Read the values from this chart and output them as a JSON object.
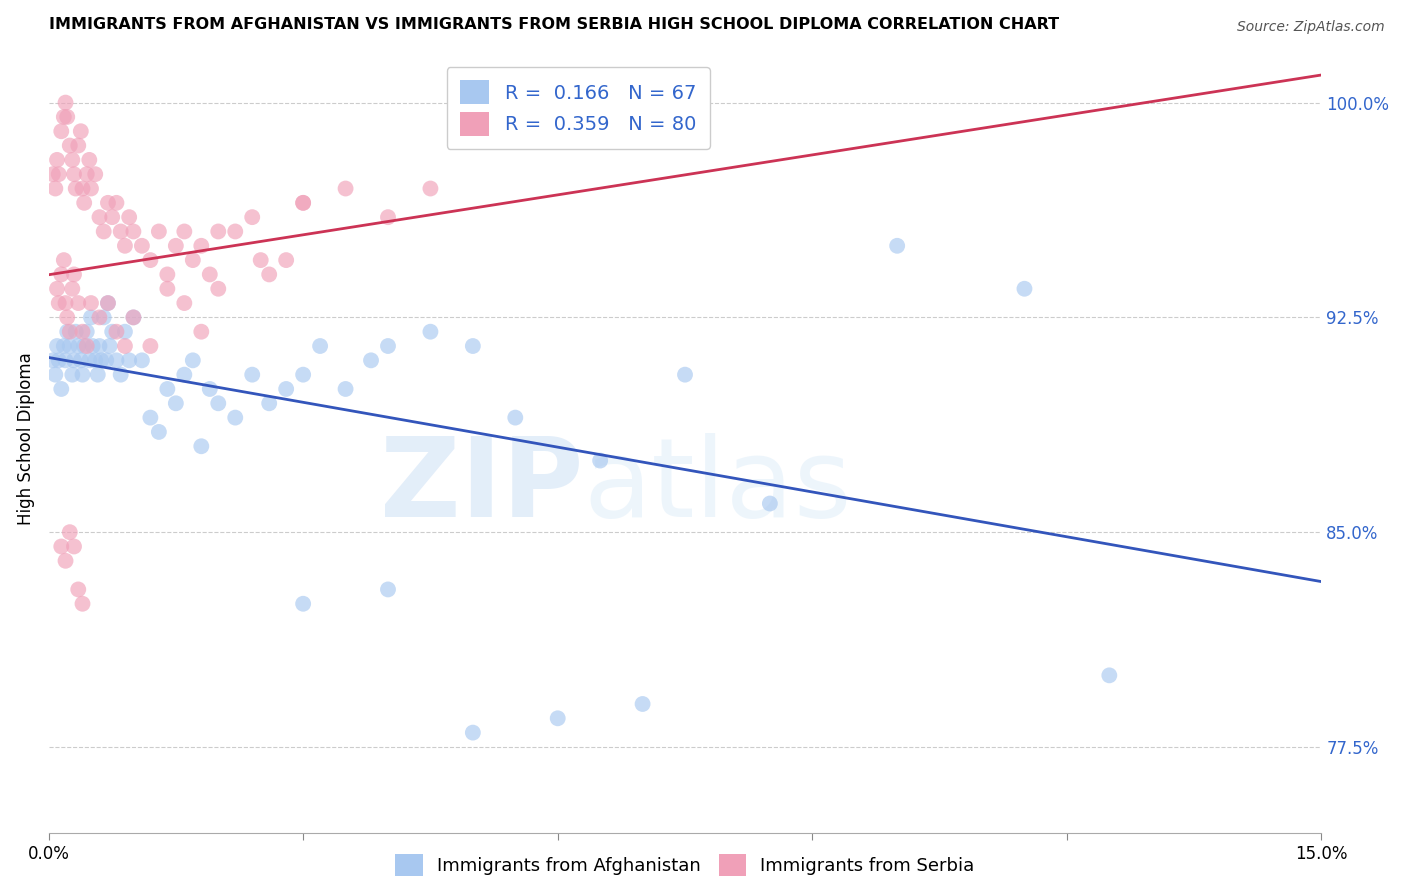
{
  "title": "IMMIGRANTS FROM AFGHANISTAN VS IMMIGRANTS FROM SERBIA HIGH SCHOOL DIPLOMA CORRELATION CHART",
  "source": "Source: ZipAtlas.com",
  "ylabel": "High School Diploma",
  "xlim": [
    0.0,
    15.0
  ],
  "ylim": [
    74.5,
    102.0
  ],
  "y_ticks_right": [
    77.5,
    85.0,
    92.5,
    100.0
  ],
  "y_tick_labels_right": [
    "77.5%",
    "85.0%",
    "92.5%",
    "100.0%"
  ],
  "label1": "Immigrants from Afghanistan",
  "label2": "Immigrants from Serbia",
  "color1": "#a8c8f0",
  "color2": "#f0a0b8",
  "line_color1": "#3355bb",
  "line_color2": "#cc3355",
  "watermark_zip": "ZIP",
  "watermark_atlas": "atlas",
  "afg_x": [
    0.05,
    0.08,
    0.1,
    0.12,
    0.15,
    0.18,
    0.2,
    0.22,
    0.25,
    0.28,
    0.3,
    0.32,
    0.35,
    0.38,
    0.4,
    0.42,
    0.45,
    0.48,
    0.5,
    0.52,
    0.55,
    0.58,
    0.6,
    0.62,
    0.65,
    0.68,
    0.7,
    0.72,
    0.75,
    0.8,
    0.85,
    0.9,
    0.95,
    1.0,
    1.1,
    1.2,
    1.3,
    1.4,
    1.5,
    1.6,
    1.7,
    1.8,
    1.9,
    2.0,
    2.2,
    2.4,
    2.6,
    2.8,
    3.0,
    3.2,
    3.5,
    3.8,
    4.0,
    4.5,
    5.0,
    5.5,
    6.5,
    7.5,
    8.5,
    10.0,
    11.5,
    12.5,
    3.0,
    4.0,
    5.0,
    6.0,
    7.0
  ],
  "afg_y": [
    91.0,
    90.5,
    91.5,
    91.0,
    90.0,
    91.5,
    91.0,
    92.0,
    91.5,
    90.5,
    91.0,
    92.0,
    91.5,
    91.0,
    90.5,
    91.5,
    92.0,
    91.0,
    92.5,
    91.5,
    91.0,
    90.5,
    91.5,
    91.0,
    92.5,
    91.0,
    93.0,
    91.5,
    92.0,
    91.0,
    90.5,
    92.0,
    91.0,
    92.5,
    91.0,
    89.0,
    88.5,
    90.0,
    89.5,
    90.5,
    91.0,
    88.0,
    90.0,
    89.5,
    89.0,
    90.5,
    89.5,
    90.0,
    90.5,
    91.5,
    90.0,
    91.0,
    91.5,
    92.0,
    91.5,
    89.0,
    87.5,
    90.5,
    86.0,
    95.0,
    93.5,
    80.0,
    82.5,
    83.0,
    78.0,
    78.5,
    79.0
  ],
  "serb_x": [
    0.05,
    0.08,
    0.1,
    0.12,
    0.15,
    0.18,
    0.2,
    0.22,
    0.25,
    0.28,
    0.3,
    0.32,
    0.35,
    0.38,
    0.4,
    0.42,
    0.45,
    0.48,
    0.5,
    0.55,
    0.6,
    0.65,
    0.7,
    0.75,
    0.8,
    0.85,
    0.9,
    0.95,
    1.0,
    1.1,
    1.2,
    1.3,
    1.4,
    1.5,
    1.6,
    1.7,
    1.8,
    1.9,
    2.0,
    2.2,
    2.4,
    2.6,
    2.8,
    3.0,
    3.5,
    4.0,
    4.5,
    0.1,
    0.12,
    0.15,
    0.18,
    0.2,
    0.22,
    0.25,
    0.28,
    0.3,
    0.35,
    0.4,
    0.45,
    0.5,
    0.6,
    0.7,
    0.8,
    0.9,
    1.0,
    1.2,
    1.4,
    1.6,
    1.8,
    2.0,
    2.5,
    3.0,
    0.15,
    0.2,
    0.25,
    0.3,
    0.35,
    0.4
  ],
  "serb_y": [
    97.5,
    97.0,
    98.0,
    97.5,
    99.0,
    99.5,
    100.0,
    99.5,
    98.5,
    98.0,
    97.5,
    97.0,
    98.5,
    99.0,
    97.0,
    96.5,
    97.5,
    98.0,
    97.0,
    97.5,
    96.0,
    95.5,
    96.5,
    96.0,
    96.5,
    95.5,
    95.0,
    96.0,
    95.5,
    95.0,
    94.5,
    95.5,
    94.0,
    95.0,
    95.5,
    94.5,
    95.0,
    94.0,
    95.5,
    95.5,
    96.0,
    94.0,
    94.5,
    96.5,
    97.0,
    96.0,
    97.0,
    93.5,
    93.0,
    94.0,
    94.5,
    93.0,
    92.5,
    92.0,
    93.5,
    94.0,
    93.0,
    92.0,
    91.5,
    93.0,
    92.5,
    93.0,
    92.0,
    91.5,
    92.5,
    91.5,
    93.5,
    93.0,
    92.0,
    93.5,
    94.5,
    96.5,
    84.5,
    84.0,
    85.0,
    84.5,
    83.0,
    82.5
  ]
}
